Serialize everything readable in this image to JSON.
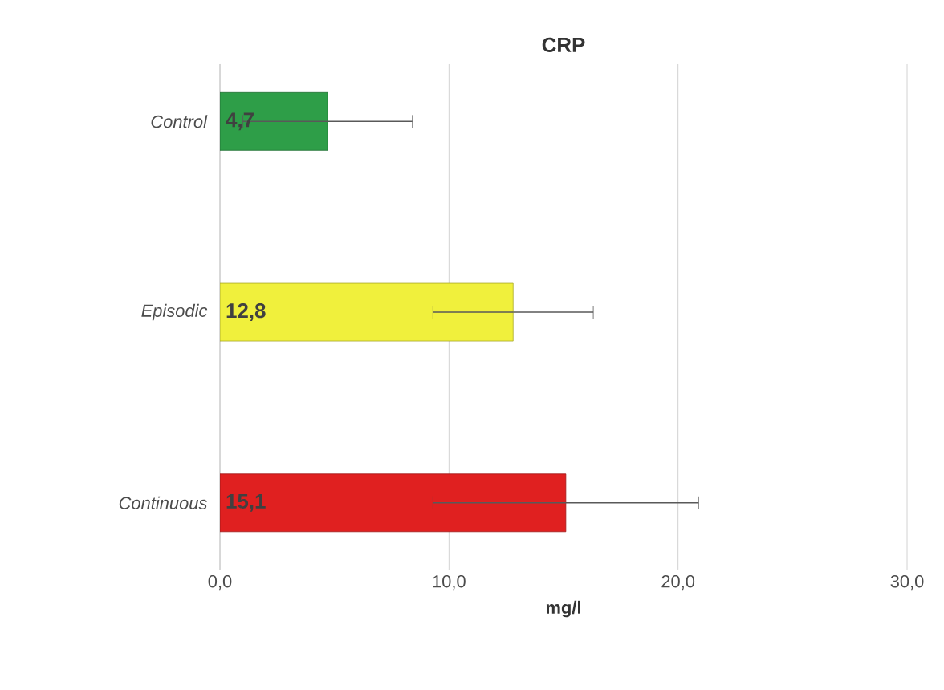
{
  "chart_data": {
    "type": "bar",
    "orientation": "horizontal",
    "title": "CRP",
    "xlabel": "mg/l",
    "categories": [
      "*Control*",
      "*Episodic*",
      "*Continuous*"
    ],
    "values": [
      4.7,
      12.8,
      15.1
    ],
    "colors": [
      "#2e9e48",
      "#f0f03c",
      "#e02020"
    ],
    "errors": [
      3.7,
      3.5,
      5.8
    ],
    "value_labels": [
      "4,7",
      "12,8",
      "15,1"
    ],
    "xlim": [
      0,
      30
    ],
    "xticks": [
      {
        "value": 0,
        "label": "0,0"
      },
      {
        "value": 10,
        "label": "10,0"
      },
      {
        "value": 20,
        "label": "20,0"
      },
      {
        "value": 30,
        "label": "30,0"
      }
    ],
    "grid": "x"
  }
}
